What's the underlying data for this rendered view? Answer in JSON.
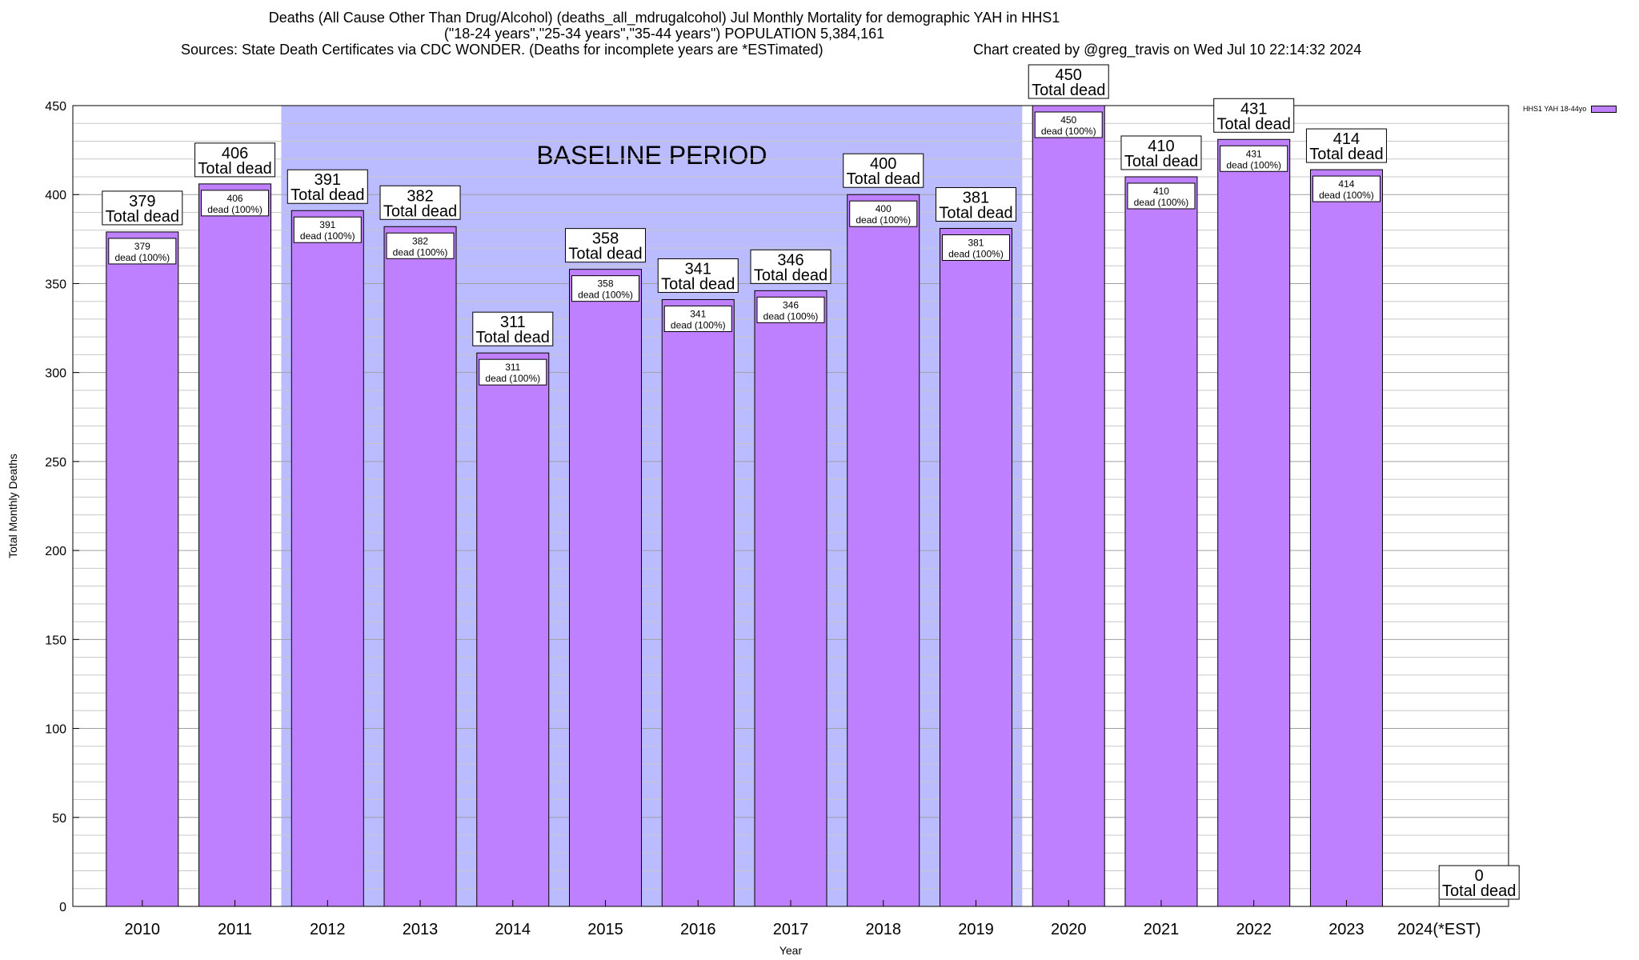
{
  "chart_data": {
    "type": "bar",
    "title": "Deaths (All Cause Other Than Drug/Alcohol) (deaths_all_mdrugalcohol) Jul Monthly Mortality for demographic YAH in HHS1",
    "subtitle": "(\"18-24 years\",\"25-34 years\",\"35-44 years\") POPULATION 5,384,161",
    "source": "Sources: State Death Certificates via CDC WONDER. (Deaths for incomplete years are *ESTimated)",
    "credit": "Chart created by @greg_travis on Wed Jul 10 22:14:32 2024",
    "xlabel": "Year",
    "ylabel": "Total Monthly Deaths",
    "ylim": [
      0,
      450
    ],
    "yticks": [
      0,
      50,
      100,
      150,
      200,
      250,
      300,
      350,
      400,
      450
    ],
    "grid": "horizontal minor lines every 10",
    "categories": [
      "2010",
      "2011",
      "2012",
      "2013",
      "2014",
      "2015",
      "2016",
      "2017",
      "2018",
      "2019",
      "2020",
      "2021",
      "2022",
      "2023",
      "2024(*EST)"
    ],
    "series": [
      {
        "name": "HHS1 YAH 18-44yo",
        "color": "#bf80ff",
        "values": [
          379,
          406,
          391,
          382,
          311,
          358,
          341,
          346,
          400,
          381,
          450,
          410,
          431,
          414,
          0
        ]
      }
    ],
    "total_label_suffix": "Total dead",
    "inner_label_suffix": "dead (100%)",
    "baseline": {
      "label": "BASELINE PERIOD",
      "from": "2012",
      "to": "2019",
      "color": "#bbbbff"
    },
    "legend_position": "top-right"
  }
}
